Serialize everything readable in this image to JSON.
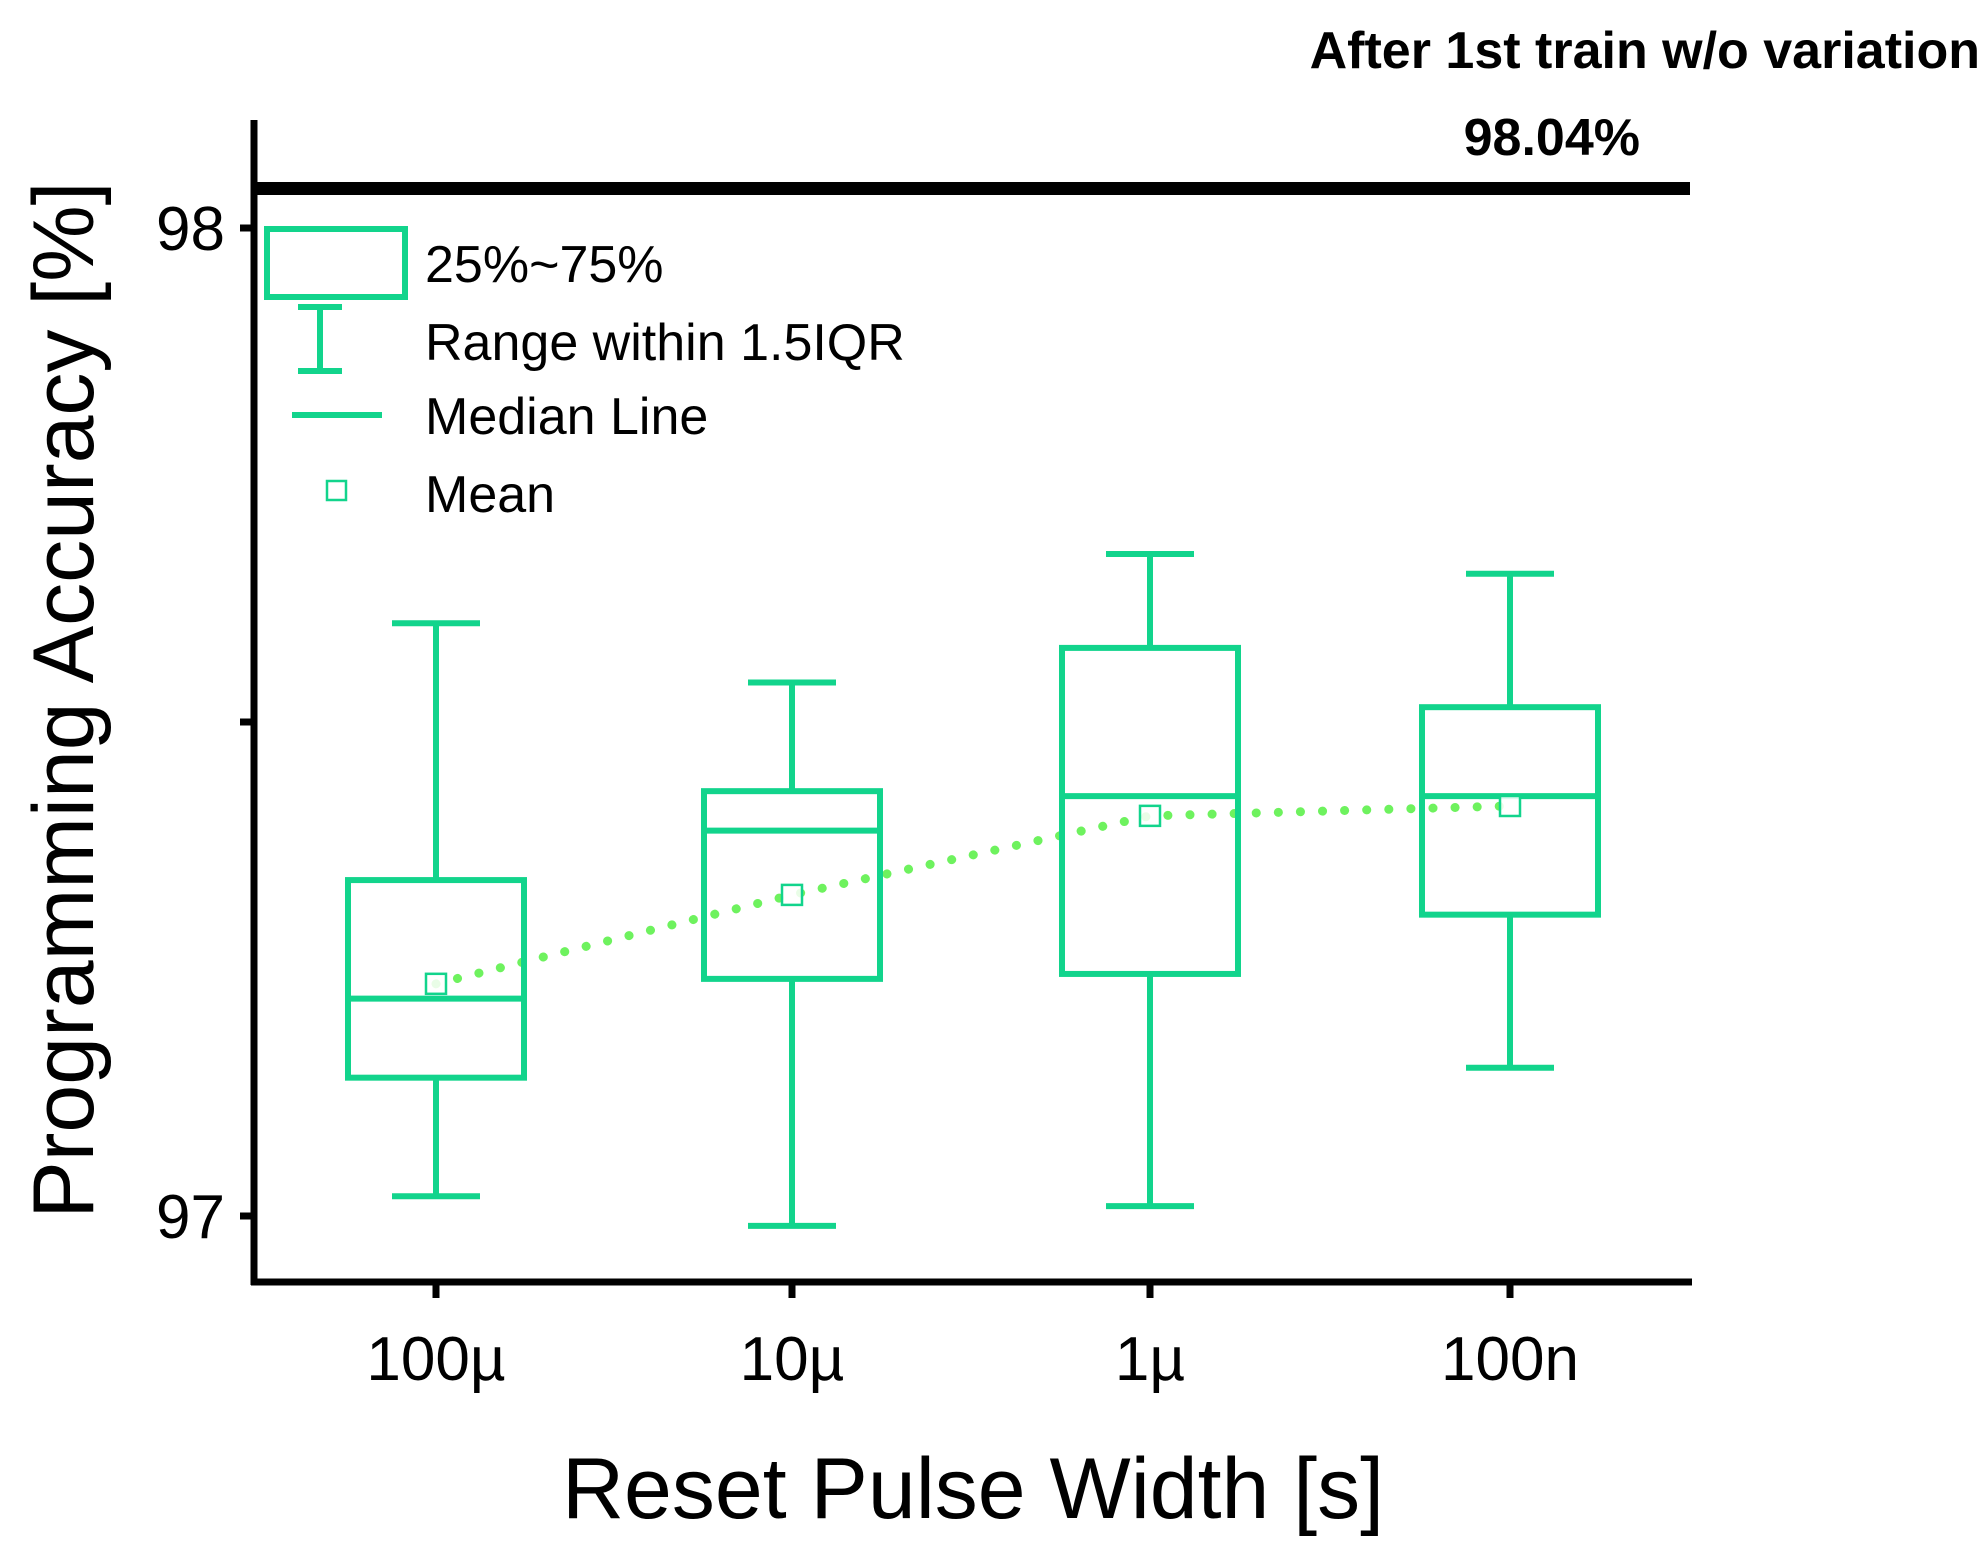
{
  "colors": {
    "box": "#12d48c",
    "mean_line": "#6ef25e",
    "axis": "#000000"
  },
  "legend": {
    "items": [
      {
        "label": "25%~75%",
        "icon": "box-icon"
      },
      {
        "label": "Range within 1.5IQR",
        "icon": "whisker-icon"
      },
      {
        "label": "Median Line",
        "icon": "median-line-icon"
      },
      {
        "label": "Mean",
        "icon": "mean-square-icon"
      }
    ]
  },
  "chart_data": {
    "type": "box",
    "title": "",
    "xlabel": "Reset Pulse Width [s]",
    "ylabel": "Programming Accuracy [%]",
    "ylim": [
      96.93,
      98.11
    ],
    "yticks": [
      97,
      97.5,
      98
    ],
    "ytick_labels": [
      "97",
      "",
      "98"
    ],
    "categories": [
      "100µ",
      "10µ",
      "1µ",
      "100n"
    ],
    "boxes": [
      {
        "category": "100µ",
        "whisker_low": 97.02,
        "q1": 97.14,
        "median": 97.22,
        "q3": 97.34,
        "whisker_high": 97.6,
        "mean": 97.235
      },
      {
        "category": "10µ",
        "whisker_low": 96.99,
        "q1": 97.24,
        "median": 97.39,
        "q3": 97.43,
        "whisker_high": 97.54,
        "mean": 97.325
      },
      {
        "category": "1µ",
        "whisker_low": 97.01,
        "q1": 97.245,
        "median": 97.425,
        "q3": 97.575,
        "whisker_high": 97.67,
        "mean": 97.405
      },
      {
        "category": "100n",
        "whisker_low": 97.15,
        "q1": 97.305,
        "median": 97.425,
        "q3": 97.515,
        "whisker_high": 97.65,
        "mean": 97.415
      }
    ],
    "reference_line": {
      "value": 98.04,
      "label_line1": "After 1st train w/o variation",
      "label_line2": "98.04%"
    }
  }
}
